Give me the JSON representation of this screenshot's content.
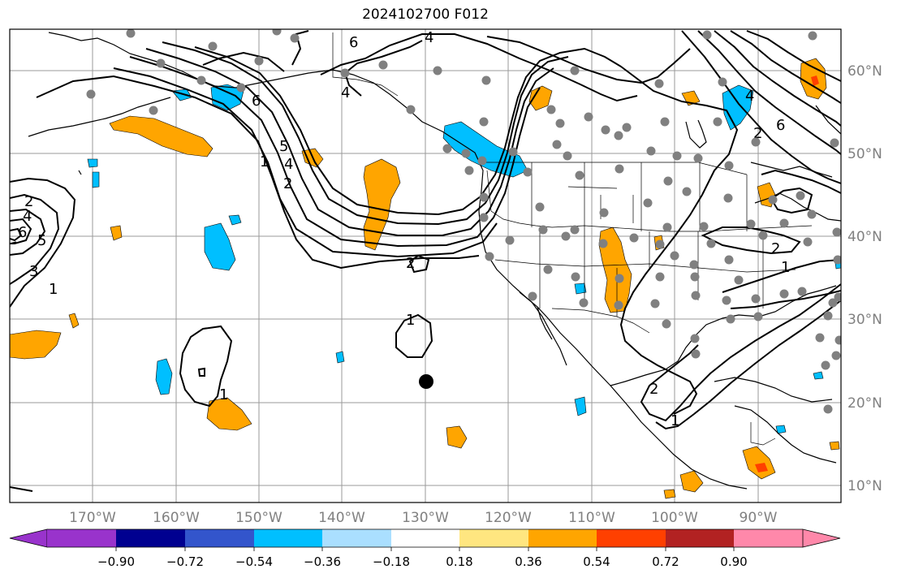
{
  "title": "2024102700 F012",
  "map": {
    "lat_labels": [
      "60°N",
      "50°N",
      "40°N",
      "30°N",
      "20°N",
      "10°N"
    ],
    "lon_labels": [
      "170°W",
      "160°W",
      "150°W",
      "140°W",
      "130°W",
      "120°W",
      "110°W",
      "100°W",
      "90°W"
    ],
    "contour_labels": [
      "6",
      "4",
      "4",
      "6",
      "5",
      "4",
      "1",
      "2",
      "2",
      "4",
      "6",
      "5",
      "3",
      "1",
      "1",
      "1",
      "2",
      "2",
      "2",
      "1",
      "1",
      "6",
      "4",
      "2"
    ],
    "fill_colors": {
      "positive": "#ffa500",
      "negative": "#00bfff",
      "strong_positive": "#ff4500"
    }
  },
  "colorbar": {
    "ticks": [
      "−0.90",
      "−0.72",
      "−0.54",
      "−0.36",
      "−0.18",
      "0.18",
      "0.36",
      "0.54",
      "0.72",
      "0.90"
    ],
    "colors": [
      "#9933cc",
      "#000090",
      "#3355cc",
      "#00bfff",
      "#aadfff",
      "#ffffff",
      "#ffe680",
      "#ffa500",
      "#ff4000",
      "#b22222",
      "#ff88aa"
    ]
  }
}
